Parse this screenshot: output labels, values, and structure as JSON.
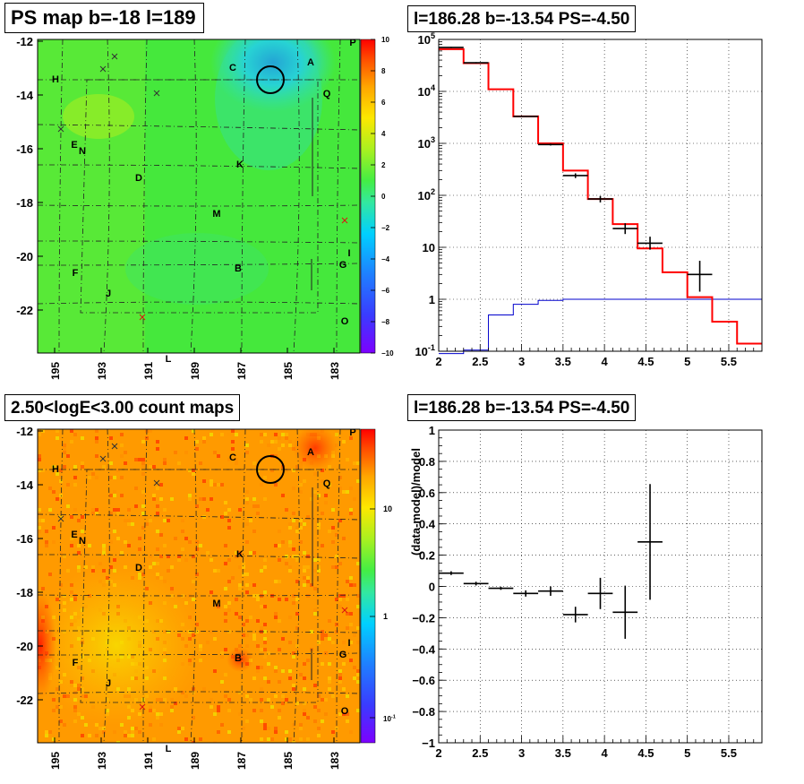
{
  "titles": {
    "map_top": "PS map b=-18 l=189",
    "spectrum": "l=186.28 b=-13.54 PS=-4.50",
    "map_bottom": "2.50<logE<3.00 count maps",
    "residual": "l=186.28 b=-13.54 PS=-4.50"
  },
  "map_axes": {
    "y_ticks": [
      "-12",
      "-14",
      "-16",
      "-18",
      "-20",
      "-22"
    ],
    "x_ticks": [
      "195",
      "193",
      "191",
      "189",
      "187",
      "185",
      "183"
    ],
    "x_label": "L"
  },
  "source_labels": [
    "P",
    "A",
    "C",
    "H",
    "Q",
    "E",
    "N",
    "K",
    "D",
    "M",
    "I",
    "G",
    "B",
    "F",
    "J",
    "O"
  ],
  "colorbar_top": {
    "ticks": [
      "10",
      "8",
      "6",
      "4",
      "2",
      "0",
      "−2",
      "−4",
      "−6",
      "−8",
      "−10"
    ]
  },
  "colorbar_bottom": {
    "ticks": [
      "10",
      "1"
    ],
    "minor_label_base": "10",
    "minor_label_exp": "-1"
  },
  "chart_data": [
    {
      "type": "line",
      "name": "spectrum",
      "y_scale": "log",
      "xlim": [
        2.0,
        5.9
      ],
      "ylim": [
        0.1,
        100000
      ],
      "x_ticks": [
        "2",
        "2.5",
        "3",
        "3.5",
        "4",
        "4.5",
        "5",
        "5.5"
      ],
      "y_ticks": [
        {
          "base": "10",
          "exp": "5"
        },
        {
          "base": "10",
          "exp": "4"
        },
        {
          "base": "10",
          "exp": "3"
        },
        {
          "base": "10",
          "exp": "2"
        },
        {
          "base": "10",
          "exp": ""
        },
        {
          "base": "1",
          "exp": ""
        },
        {
          "base": "10",
          "exp": "-1"
        }
      ],
      "grid": true,
      "model_total": {
        "color": "#ff0000",
        "bins": [
          [
            2.0,
            2.3,
            65000
          ],
          [
            2.3,
            2.6,
            35000
          ],
          [
            2.6,
            2.9,
            11000
          ],
          [
            2.9,
            3.2,
            3300
          ],
          [
            3.2,
            3.5,
            1000
          ],
          [
            3.5,
            3.8,
            300
          ],
          [
            3.8,
            4.1,
            85
          ],
          [
            4.1,
            4.4,
            28
          ],
          [
            4.4,
            4.7,
            9.5
          ],
          [
            4.7,
            5.0,
            3.3
          ],
          [
            5.0,
            5.3,
            1.1
          ],
          [
            5.3,
            5.6,
            0.37
          ],
          [
            5.6,
            5.9,
            0.14
          ]
        ]
      },
      "model_source": {
        "color": "#0000cc",
        "bins": [
          [
            2.0,
            2.3,
            0.09
          ],
          [
            2.3,
            2.6,
            0.105
          ],
          [
            2.6,
            2.9,
            0.5
          ],
          [
            2.9,
            3.2,
            0.8
          ],
          [
            3.2,
            3.5,
            0.95
          ],
          [
            3.5,
            5.9,
            1.0
          ]
        ]
      },
      "data_points": [
        {
          "x": 2.15,
          "xerr": 0.15,
          "y": 70000,
          "yerr_low": 1800,
          "yerr_high": 1800
        },
        {
          "x": 2.45,
          "xerr": 0.15,
          "y": 35500,
          "yerr_low": 1000,
          "yerr_high": 1000
        },
        {
          "x": 3.05,
          "xerr": 0.15,
          "y": 3300,
          "yerr_low": 80,
          "yerr_high": 80
        },
        {
          "x": 3.35,
          "xerr": 0.15,
          "y": 950,
          "yerr_low": 40,
          "yerr_high": 40
        },
        {
          "x": 3.65,
          "xerr": 0.15,
          "y": 240,
          "yerr_low": 25,
          "yerr_high": 25
        },
        {
          "x": 3.95,
          "xerr": 0.15,
          "y": 85,
          "yerr_low": 12,
          "yerr_high": 12
        },
        {
          "x": 4.25,
          "xerr": 0.15,
          "y": 23,
          "yerr_low": 5,
          "yerr_high": 6
        },
        {
          "x": 4.55,
          "xerr": 0.15,
          "y": 12,
          "yerr_low": 3,
          "yerr_high": 4
        },
        {
          "x": 5.15,
          "xerr": 0.15,
          "y": 3,
          "yerr_low": 1.6,
          "yerr_high": 2.5
        }
      ]
    },
    {
      "type": "scatter",
      "name": "residual",
      "xlim": [
        2.0,
        5.9
      ],
      "ylim": [
        -1.0,
        1.0
      ],
      "ylabel": "(data-model)/model",
      "x_ticks": [
        "2",
        "2.5",
        "3",
        "3.5",
        "4",
        "4.5",
        "5",
        "5.5"
      ],
      "y_ticks": [
        "1",
        "0.8",
        "0.6",
        "0.4",
        "0.2",
        "0",
        "−0.2",
        "−0.4",
        "−0.6",
        "−0.8",
        "−1"
      ],
      "grid": true,
      "points": [
        {
          "x": 2.15,
          "xerr": 0.15,
          "y": 0.085,
          "yerr": 0.012
        },
        {
          "x": 2.45,
          "xerr": 0.15,
          "y": 0.018,
          "yerr": 0.012
        },
        {
          "x": 2.75,
          "xerr": 0.15,
          "y": -0.012,
          "yerr": 0.01
        },
        {
          "x": 3.05,
          "xerr": 0.15,
          "y": -0.045,
          "yerr": 0.02
        },
        {
          "x": 3.35,
          "xerr": 0.15,
          "y": -0.03,
          "yerr": 0.03
        },
        {
          "x": 3.65,
          "xerr": 0.15,
          "y": -0.18,
          "yerr": 0.05
        },
        {
          "x": 3.95,
          "xerr": 0.15,
          "y": -0.045,
          "yerr": 0.1
        },
        {
          "x": 4.25,
          "xerr": 0.15,
          "y": -0.165,
          "yerr": 0.17
        },
        {
          "x": 4.55,
          "xerr": 0.15,
          "y": 0.285,
          "yerr": 0.37
        }
      ]
    }
  ]
}
